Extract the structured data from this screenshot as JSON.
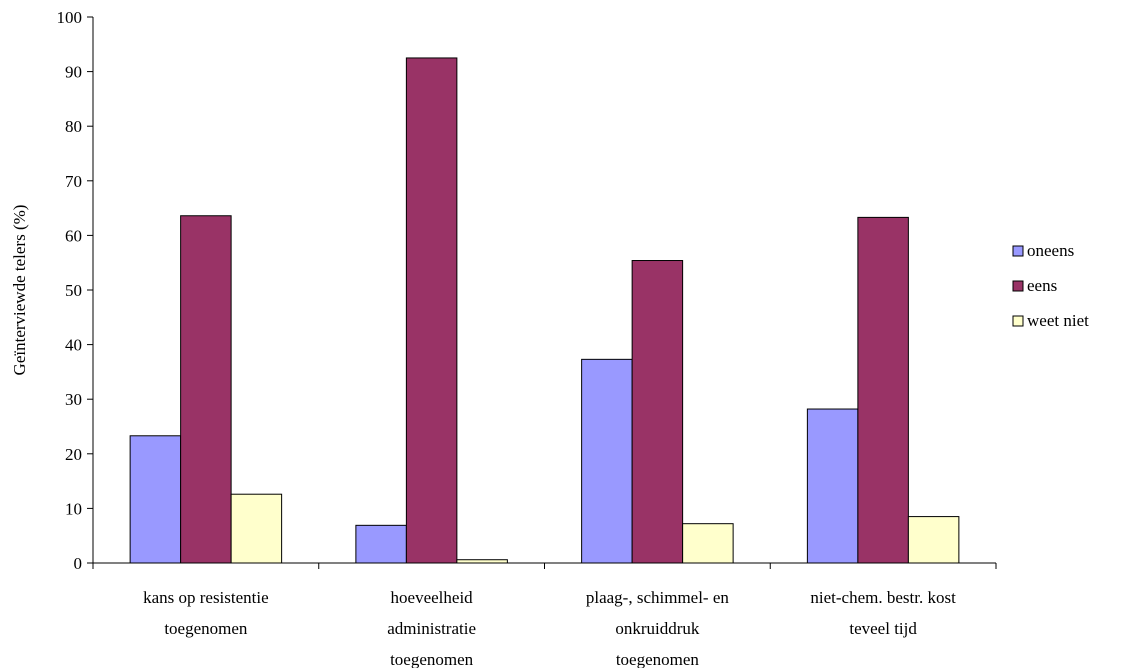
{
  "chart_data": {
    "type": "bar",
    "title": "",
    "xlabel": "",
    "ylabel": "Geïnterviewde telers (%)",
    "ylim": [
      0,
      100
    ],
    "yticks": [
      0,
      10,
      20,
      30,
      40,
      50,
      60,
      70,
      80,
      90,
      100
    ],
    "grid": false,
    "legend_position": "right",
    "categories": [
      [
        "kans op resistentie",
        "toegenomen"
      ],
      [
        "hoeveelheid",
        "administratie",
        "toegenomen"
      ],
      [
        "plaag-, schimmel- en",
        "onkruiddruk",
        "toegenomen"
      ],
      [
        "niet-chem. bestr. kost",
        "teveel tijd"
      ]
    ],
    "series": [
      {
        "name": "oneens",
        "color": "#9999ff",
        "values": [
          23.3,
          6.9,
          37.3,
          28.2
        ]
      },
      {
        "name": "eens",
        "color": "#993366",
        "values": [
          63.6,
          92.5,
          55.4,
          63.3
        ]
      },
      {
        "name": "weet niet",
        "color": "#ffffcc",
        "values": [
          12.6,
          0.6,
          7.2,
          8.5
        ]
      }
    ]
  }
}
